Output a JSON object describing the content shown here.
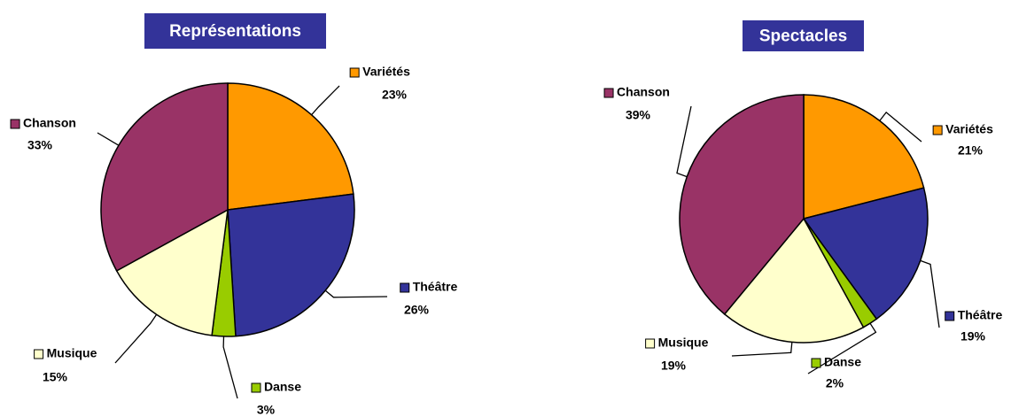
{
  "chart_data": [
    {
      "type": "pie",
      "title": "Représentations",
      "categories": [
        "Variétés",
        "Théâtre",
        "Danse",
        "Musique",
        "Chanson"
      ],
      "values": [
        23,
        26,
        3,
        15,
        33
      ],
      "value_labels": [
        "23%",
        "26%",
        "3%",
        "15%",
        "33%"
      ],
      "colors": [
        "#ff9900",
        "#333399",
        "#99cc00",
        "#ffffcc",
        "#993366"
      ]
    },
    {
      "type": "pie",
      "title": "Spectacles",
      "categories": [
        "Variétés",
        "Théâtre",
        "Danse",
        "Musique",
        "Chanson"
      ],
      "values": [
        21,
        19,
        2,
        19,
        39
      ],
      "value_labels": [
        "21%",
        "19%",
        "2%",
        "19%",
        "39%"
      ],
      "colors": [
        "#ff9900",
        "#333399",
        "#99cc00",
        "#ffffcc",
        "#993366"
      ]
    }
  ]
}
